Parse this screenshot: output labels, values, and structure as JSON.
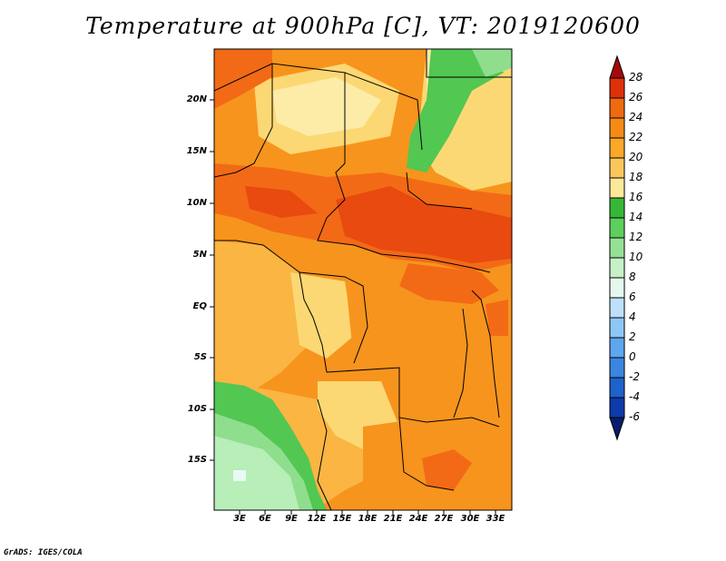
{
  "title": "Temperature at 900hPa [C], VT: 2019120600",
  "credit": "GrADS: IGES/COLA",
  "lat_labels": [
    "20N",
    "15N",
    "10N",
    "5N",
    "EQ",
    "5S",
    "10S",
    "15S"
  ],
  "lon_labels": [
    "3E",
    "6E",
    "9E",
    "12E",
    "15E",
    "18E",
    "21E",
    "24E",
    "27E",
    "30E",
    "33E"
  ],
  "colorbar": {
    "labels": [
      "28",
      "26",
      "24",
      "22",
      "20",
      "18",
      "16",
      "14",
      "12",
      "10",
      "8",
      "6",
      "4",
      "2",
      "0",
      "-2",
      "-4",
      "-6"
    ],
    "colors": [
      "#a50a0a",
      "#e0300a",
      "#f06a10",
      "#f58a15",
      "#faa828",
      "#fcc75a",
      "#fde89a",
      "#36b836",
      "#5ccf5c",
      "#96e096",
      "#c6f0c6",
      "#e6f8ee",
      "#bee0fa",
      "#8ec6f5",
      "#5ea6ee",
      "#3a86e0",
      "#1e62cc",
      "#0e3aaa",
      "#081c6e"
    ]
  },
  "map": {
    "color_dark_red": "#e84a10",
    "color_orange_red": "#f26a16",
    "color_orange": "#f7941d",
    "color_light_orange": "#fab543",
    "color_yellow": "#fcd874",
    "color_pale_yellow": "#fdeca8",
    "color_green": "#52c752",
    "color_light_green": "#8ede8e",
    "color_pale_green": "#b8eeb8",
    "color_white": "#e8faf4"
  }
}
